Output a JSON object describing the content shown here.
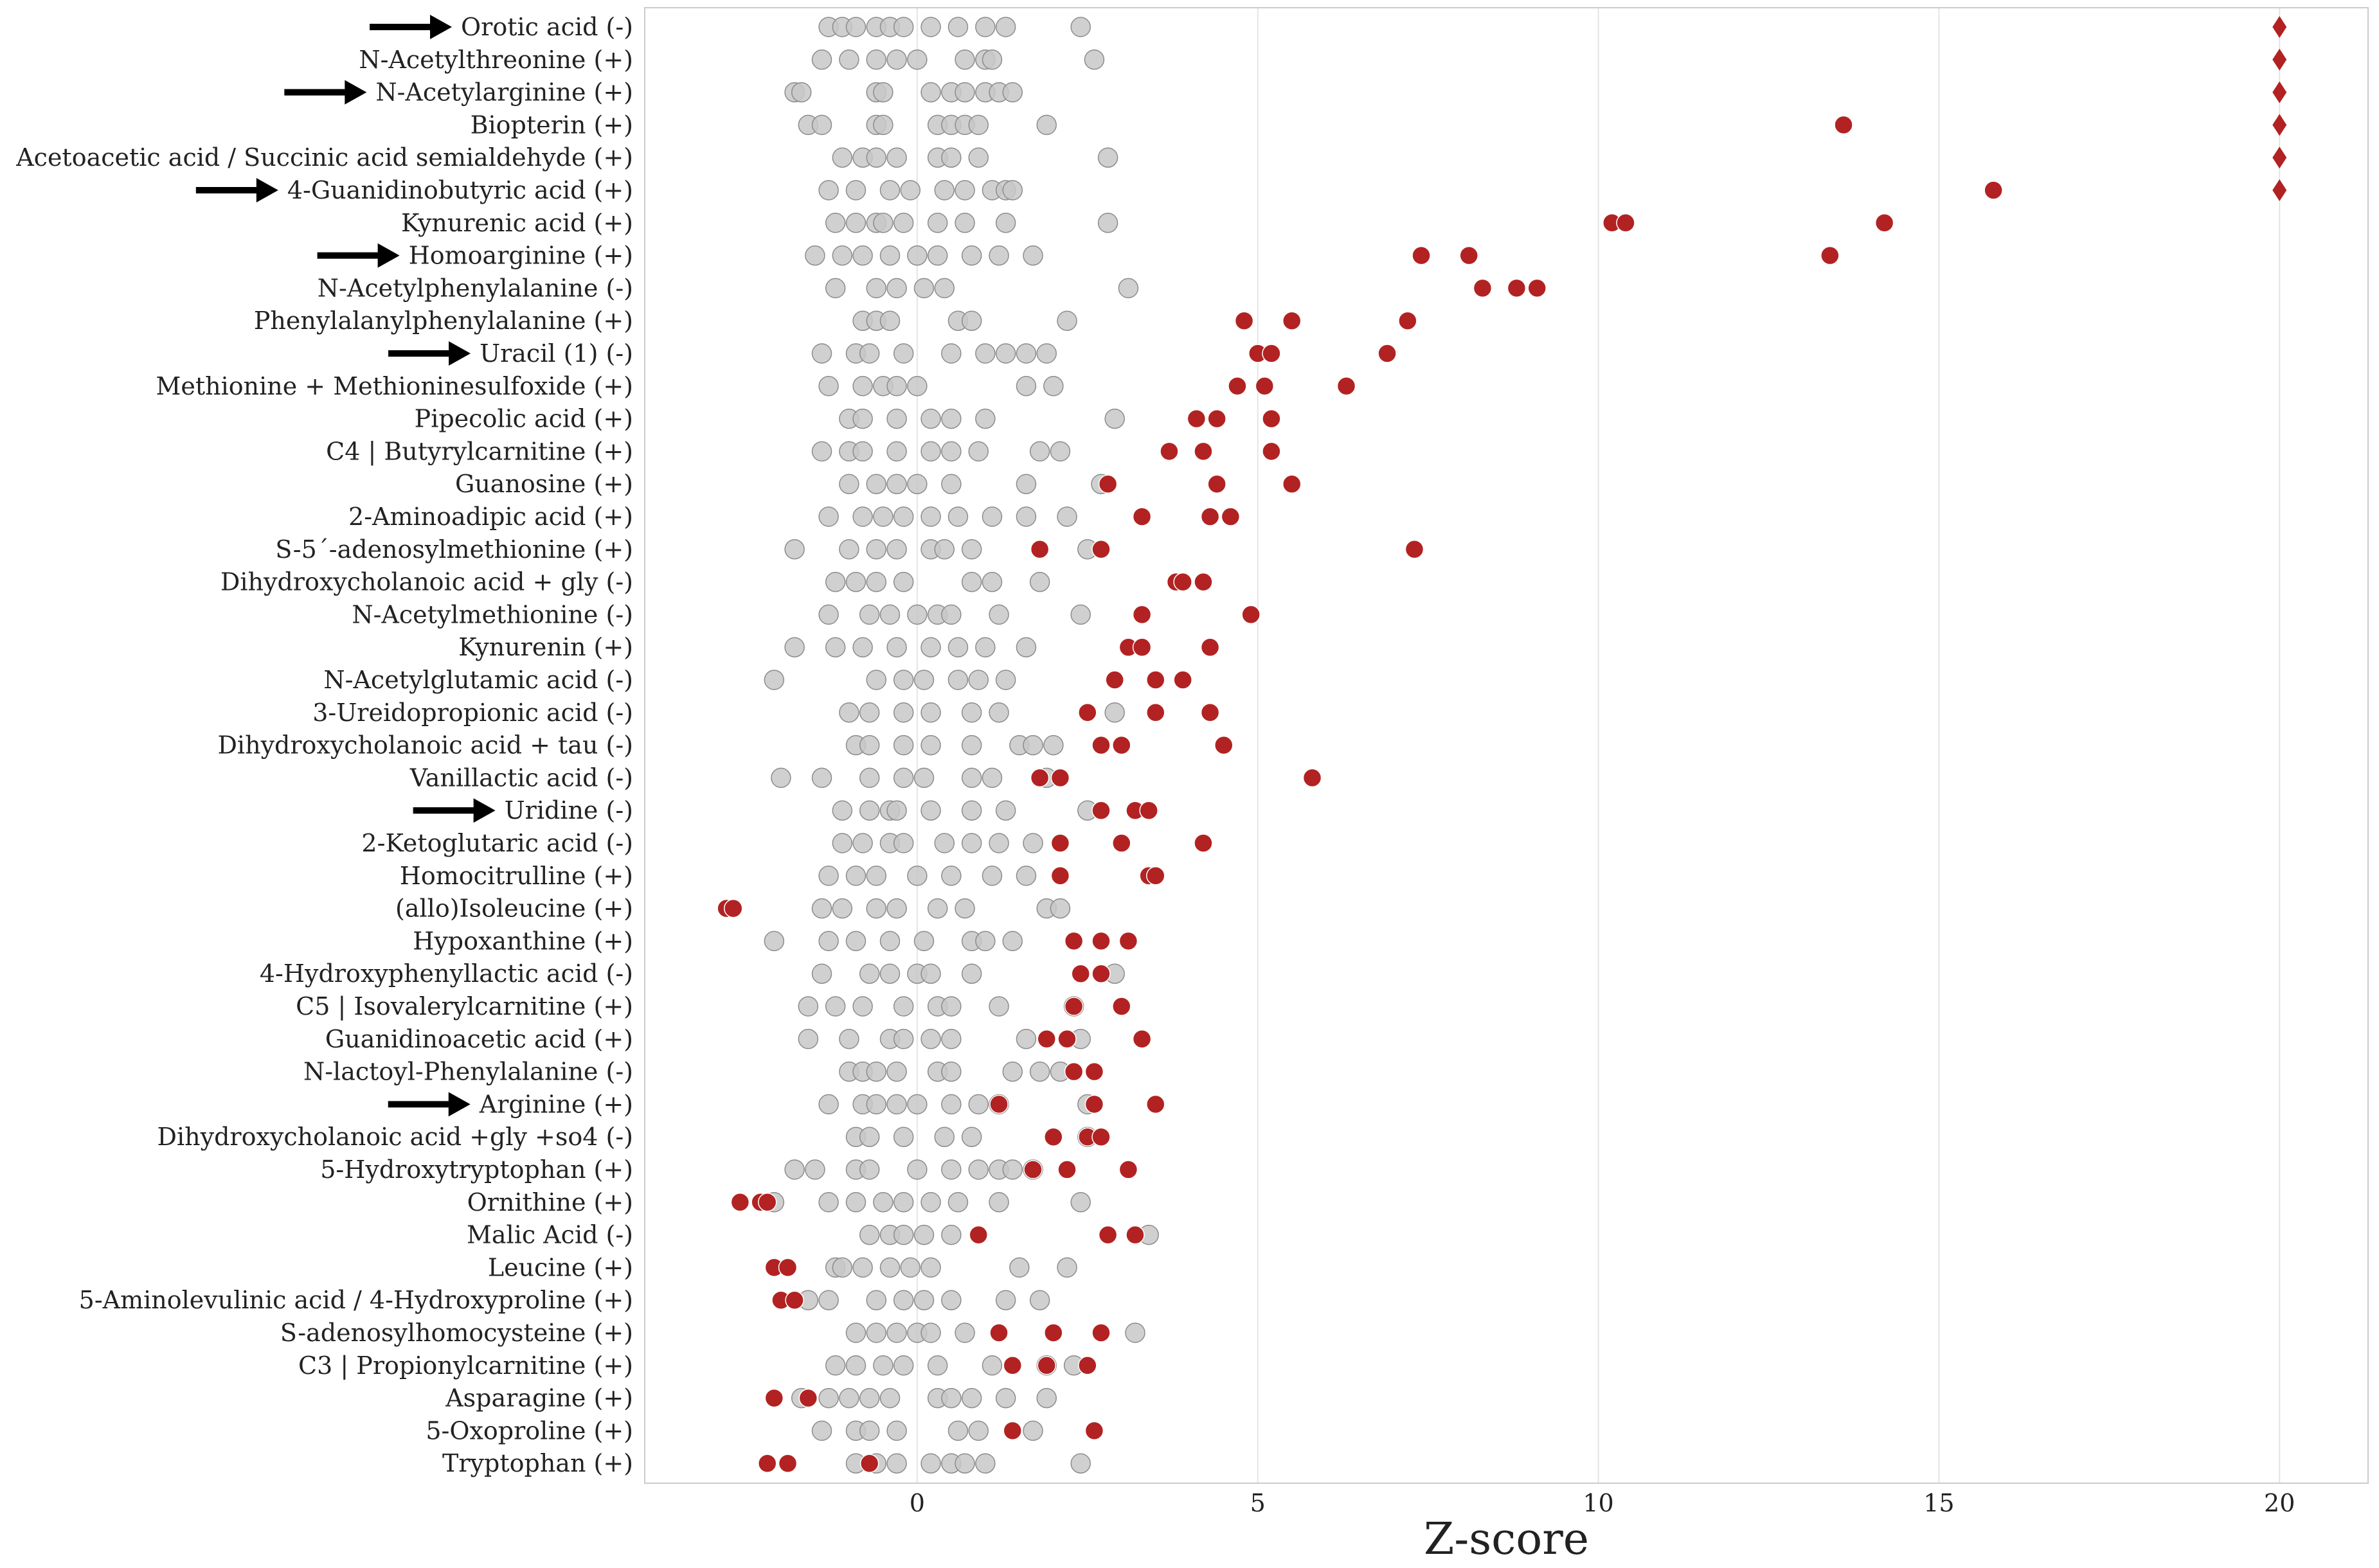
{
  "chart_data": {
    "type": "scatter",
    "xlabel": "Z-score",
    "xlim": [
      -4.0,
      21.3
    ],
    "xticks": [
      0,
      5,
      10,
      15,
      20
    ],
    "grid": "vertical",
    "colors": {
      "control": "#c8c8c8",
      "control_edge": "#8c8c8c",
      "patient": "#b22222",
      "grid": "#e4e4e4",
      "frame": "#cccccc",
      "arrow": "#000000"
    },
    "capped_marker": "diamond",
    "rows": [
      {
        "label": "Orotic acid (-)",
        "arrow": true,
        "controls": [
          -1.3,
          -1.1,
          -0.9,
          -0.6,
          -0.4,
          -0.2,
          0.2,
          0.6,
          1.0,
          1.3,
          2.4
        ],
        "patients": [],
        "capped": [
          20
        ]
      },
      {
        "label": "N-Acetylthreonine (+)",
        "arrow": false,
        "controls": [
          -1.4,
          -1.0,
          -0.6,
          -0.3,
          0.0,
          0.7,
          1.0,
          1.1,
          2.6
        ],
        "patients": [],
        "capped": [
          20
        ]
      },
      {
        "label": "N-Acetylarginine (+)",
        "arrow": true,
        "controls": [
          -1.8,
          -1.7,
          -0.6,
          -0.5,
          0.2,
          0.5,
          0.7,
          1.0,
          1.2,
          1.4
        ],
        "patients": [],
        "capped": [
          20
        ]
      },
      {
        "label": "Biopterin (+)",
        "arrow": false,
        "controls": [
          -1.6,
          -1.4,
          -0.6,
          -0.5,
          0.3,
          0.5,
          0.7,
          0.9,
          1.9
        ],
        "patients": [
          13.6
        ],
        "capped": [
          20
        ]
      },
      {
        "label": "Acetoacetic acid / Succinic acid semialdehyde (+)",
        "arrow": false,
        "controls": [
          -1.1,
          -0.8,
          -0.6,
          -0.3,
          0.3,
          0.5,
          0.9,
          2.8
        ],
        "patients": [],
        "capped": [
          20
        ]
      },
      {
        "label": "4-Guanidinobutyric acid (+)",
        "arrow": true,
        "controls": [
          -1.3,
          -0.9,
          -0.4,
          -0.1,
          0.4,
          0.7,
          1.1,
          1.3,
          1.4
        ],
        "patients": [
          15.8
        ],
        "capped": [
          20
        ]
      },
      {
        "label": "Kynurenic acid (+)",
        "arrow": false,
        "controls": [
          -1.2,
          -0.9,
          -0.6,
          -0.5,
          -0.2,
          0.3,
          0.7,
          1.3,
          2.8
        ],
        "patients": [
          10.2,
          10.4,
          14.2
        ],
        "capped": []
      },
      {
        "label": "Homoarginine (+)",
        "arrow": true,
        "controls": [
          -1.5,
          -1.1,
          -0.8,
          -0.4,
          0.0,
          0.3,
          0.8,
          1.2,
          1.7
        ],
        "patients": [
          7.4,
          8.1,
          13.4
        ],
        "capped": []
      },
      {
        "label": "N-Acetylphenylalanine (-)",
        "arrow": false,
        "controls": [
          -1.2,
          -0.6,
          -0.3,
          0.1,
          0.4,
          3.1
        ],
        "patients": [
          8.3,
          8.8,
          9.1
        ],
        "capped": []
      },
      {
        "label": "Phenylalanylphenylalanine (+)",
        "arrow": false,
        "controls": [
          -0.8,
          -0.6,
          -0.4,
          0.6,
          0.8,
          2.2
        ],
        "patients": [
          4.8,
          5.5,
          7.2
        ],
        "capped": []
      },
      {
        "label": "Uracil (1) (-)",
        "arrow": true,
        "controls": [
          -1.4,
          -0.9,
          -0.7,
          -0.2,
          0.5,
          1.0,
          1.3,
          1.6,
          1.9
        ],
        "patients": [
          5.0,
          5.2,
          6.9
        ],
        "capped": []
      },
      {
        "label": "Methionine + Methioninesulfoxide (+)",
        "arrow": false,
        "controls": [
          -1.3,
          -0.8,
          -0.5,
          -0.3,
          0.0,
          1.6,
          2.0
        ],
        "patients": [
          4.7,
          5.1,
          6.3
        ],
        "capped": []
      },
      {
        "label": "Pipecolic acid (+)",
        "arrow": false,
        "controls": [
          -1.0,
          -0.8,
          -0.3,
          0.2,
          0.5,
          1.0,
          2.9
        ],
        "patients": [
          4.1,
          4.4,
          5.2
        ],
        "capped": []
      },
      {
        "label": "C4 | Butyrylcarnitine (+)",
        "arrow": false,
        "controls": [
          -1.4,
          -1.0,
          -0.8,
          -0.3,
          0.2,
          0.5,
          0.9,
          1.8,
          2.1
        ],
        "patients": [
          3.7,
          4.2,
          5.2
        ],
        "capped": []
      },
      {
        "label": "Guanosine (+)",
        "arrow": false,
        "controls": [
          -1.0,
          -0.6,
          -0.3,
          0.0,
          0.5,
          1.6,
          2.7
        ],
        "patients": [
          2.8,
          4.4,
          5.5
        ],
        "capped": []
      },
      {
        "label": "2-Aminoadipic acid (+)",
        "arrow": false,
        "controls": [
          -1.3,
          -0.8,
          -0.5,
          -0.2,
          0.2,
          0.6,
          1.1,
          1.6,
          2.2
        ],
        "patients": [
          3.3,
          4.3,
          4.6
        ],
        "capped": []
      },
      {
        "label": "S-5´-adenosylmethionine (+)",
        "arrow": false,
        "controls": [
          -1.8,
          -1.0,
          -0.6,
          -0.3,
          0.2,
          0.4,
          0.8,
          2.5
        ],
        "patients": [
          1.8,
          2.7,
          7.3
        ],
        "capped": []
      },
      {
        "label": "Dihydroxycholanoic acid + gly (-)",
        "arrow": false,
        "controls": [
          -1.2,
          -0.9,
          -0.6,
          -0.2,
          0.8,
          1.1,
          1.8
        ],
        "patients": [
          3.8,
          3.9,
          4.2
        ],
        "capped": []
      },
      {
        "label": "N-Acetylmethionine (-)",
        "arrow": false,
        "controls": [
          -1.3,
          -0.7,
          -0.4,
          0.0,
          0.3,
          0.5,
          1.2,
          2.4
        ],
        "patients": [
          3.3,
          4.9
        ],
        "capped": []
      },
      {
        "label": "Kynurenin (+)",
        "arrow": false,
        "controls": [
          -1.8,
          -1.2,
          -0.8,
          -0.3,
          0.2,
          0.6,
          1.0,
          1.6
        ],
        "patients": [
          3.1,
          3.3,
          4.3
        ],
        "capped": []
      },
      {
        "label": "N-Acetylglutamic acid (-)",
        "arrow": false,
        "controls": [
          -2.1,
          -0.6,
          -0.2,
          0.1,
          0.6,
          0.9,
          1.3
        ],
        "patients": [
          2.9,
          3.5,
          3.9
        ],
        "capped": []
      },
      {
        "label": "3-Ureidopropionic acid (-)",
        "arrow": false,
        "controls": [
          -1.0,
          -0.7,
          -0.2,
          0.2,
          0.8,
          1.2,
          2.9
        ],
        "patients": [
          2.5,
          3.5,
          4.3
        ],
        "capped": []
      },
      {
        "label": "Dihydroxycholanoic acid + tau (-)",
        "arrow": false,
        "controls": [
          -0.9,
          -0.7,
          -0.2,
          0.2,
          0.8,
          1.5,
          1.7,
          2.0
        ],
        "patients": [
          2.7,
          3.0,
          4.5
        ],
        "capped": []
      },
      {
        "label": "Vanillactic acid (-)",
        "arrow": false,
        "controls": [
          -2.0,
          -1.4,
          -0.7,
          -0.2,
          0.1,
          0.8,
          1.1,
          1.9
        ],
        "patients": [
          1.8,
          2.1,
          5.8
        ],
        "capped": []
      },
      {
        "label": "Uridine (-)",
        "arrow": true,
        "controls": [
          -1.1,
          -0.7,
          -0.4,
          -0.3,
          0.2,
          0.8,
          1.3,
          2.5
        ],
        "patients": [
          2.7,
          3.2,
          3.4
        ],
        "capped": []
      },
      {
        "label": "2-Ketoglutaric acid (-)",
        "arrow": false,
        "controls": [
          -1.1,
          -0.8,
          -0.4,
          -0.2,
          0.4,
          0.8,
          1.2,
          1.7
        ],
        "patients": [
          2.1,
          3.0,
          4.2
        ],
        "capped": []
      },
      {
        "label": "Homocitrulline (+)",
        "arrow": false,
        "controls": [
          -1.3,
          -0.9,
          -0.6,
          0.0,
          0.5,
          1.1,
          1.6
        ],
        "patients": [
          2.1,
          3.4,
          3.5
        ],
        "capped": []
      },
      {
        "label": "(allo)Isoleucine (+)",
        "arrow": false,
        "controls": [
          -1.4,
          -1.1,
          -0.6,
          -0.3,
          0.3,
          0.7,
          1.9,
          2.1
        ],
        "patients": [
          -2.8,
          -2.7
        ],
        "capped": []
      },
      {
        "label": "Hypoxanthine (+)",
        "arrow": false,
        "controls": [
          -2.1,
          -1.3,
          -0.9,
          -0.4,
          0.1,
          0.8,
          1.0,
          1.4
        ],
        "patients": [
          2.3,
          2.7,
          3.1
        ],
        "capped": []
      },
      {
        "label": "4-Hydroxyphenyllactic acid (-)",
        "arrow": false,
        "controls": [
          -1.4,
          -0.7,
          -0.4,
          0.0,
          0.2,
          0.8,
          2.9
        ],
        "patients": [
          2.4,
          2.7
        ],
        "capped": []
      },
      {
        "label": "C5 | Isovalerylcarnitine (+)",
        "arrow": false,
        "controls": [
          -1.6,
          -1.2,
          -0.8,
          -0.2,
          0.3,
          0.5,
          1.2,
          2.3
        ],
        "patients": [
          2.3,
          3.0
        ],
        "capped": []
      },
      {
        "label": "Guanidinoacetic acid (+)",
        "arrow": false,
        "controls": [
          -1.6,
          -1.0,
          -0.4,
          -0.2,
          0.2,
          0.5,
          1.6,
          2.4
        ],
        "patients": [
          1.9,
          2.2,
          3.3
        ],
        "capped": []
      },
      {
        "label": "N-lactoyl-Phenylalanine (-)",
        "arrow": false,
        "controls": [
          -1.0,
          -0.8,
          -0.6,
          -0.3,
          0.3,
          0.5,
          1.4,
          1.8,
          2.1
        ],
        "patients": [
          2.3,
          2.6
        ],
        "capped": []
      },
      {
        "label": "Arginine (+)",
        "arrow": true,
        "controls": [
          -1.3,
          -0.8,
          -0.6,
          -0.3,
          0.0,
          0.5,
          0.9,
          1.2,
          2.5
        ],
        "patients": [
          1.2,
          2.6,
          3.5
        ],
        "capped": []
      },
      {
        "label": "Dihydroxycholanoic acid +gly +so4 (-)",
        "arrow": false,
        "controls": [
          -0.9,
          -0.7,
          -0.2,
          0.4,
          0.8,
          2.5
        ],
        "patients": [
          2.0,
          2.5,
          2.7
        ],
        "capped": []
      },
      {
        "label": "5-Hydroxytryptophan (+)",
        "arrow": false,
        "controls": [
          -1.8,
          -1.5,
          -0.9,
          -0.7,
          0.0,
          0.5,
          0.9,
          1.2,
          1.4,
          1.7
        ],
        "patients": [
          1.7,
          2.2,
          3.1
        ],
        "capped": []
      },
      {
        "label": "Ornithine (+)",
        "arrow": false,
        "controls": [
          -2.1,
          -1.3,
          -0.9,
          -0.5,
          -0.2,
          0.2,
          0.6,
          1.2,
          2.4
        ],
        "patients": [
          -2.6,
          -2.3,
          -2.2
        ],
        "capped": []
      },
      {
        "label": "Malic Acid (-)",
        "arrow": false,
        "controls": [
          -0.7,
          -0.4,
          -0.2,
          0.1,
          0.5,
          3.4
        ],
        "patients": [
          0.9,
          2.8,
          3.2
        ],
        "capped": []
      },
      {
        "label": "Leucine (+)",
        "arrow": false,
        "controls": [
          -1.2,
          -1.1,
          -0.8,
          -0.4,
          -0.1,
          0.2,
          1.5,
          2.2
        ],
        "patients": [
          -2.1,
          -1.9
        ],
        "capped": []
      },
      {
        "label": "5-Aminolevulinic acid / 4-Hydroxyproline (+)",
        "arrow": false,
        "controls": [
          -1.6,
          -1.3,
          -0.6,
          -0.2,
          0.1,
          0.5,
          1.3,
          1.8
        ],
        "patients": [
          -2.0,
          -1.8
        ],
        "capped": []
      },
      {
        "label": "S-adenosylhomocysteine (+)",
        "arrow": false,
        "controls": [
          -0.9,
          -0.6,
          -0.3,
          0.0,
          0.2,
          0.7,
          3.2
        ],
        "patients": [
          1.2,
          2.0,
          2.7
        ],
        "capped": []
      },
      {
        "label": "C3 | Propionylcarnitine (+)",
        "arrow": false,
        "controls": [
          -1.2,
          -0.9,
          -0.5,
          -0.2,
          0.3,
          1.1,
          1.9,
          2.3
        ],
        "patients": [
          1.4,
          1.9,
          2.5
        ],
        "capped": []
      },
      {
        "label": "Asparagine (+)",
        "arrow": false,
        "controls": [
          -1.7,
          -1.3,
          -1.0,
          -0.7,
          -0.4,
          0.3,
          0.5,
          0.8,
          1.3,
          1.9
        ],
        "patients": [
          -2.1,
          -1.6
        ],
        "capped": []
      },
      {
        "label": "5-Oxoproline (+)",
        "arrow": false,
        "controls": [
          -1.4,
          -0.9,
          -0.7,
          -0.3,
          0.6,
          0.9,
          1.7
        ],
        "patients": [
          1.4,
          2.6
        ],
        "capped": []
      },
      {
        "label": "Tryptophan (+)",
        "arrow": false,
        "controls": [
          -0.9,
          -0.6,
          -0.3,
          0.2,
          0.5,
          0.7,
          1.0,
          2.4
        ],
        "patients": [
          -2.2,
          -1.9,
          -0.7
        ],
        "capped": []
      }
    ]
  }
}
